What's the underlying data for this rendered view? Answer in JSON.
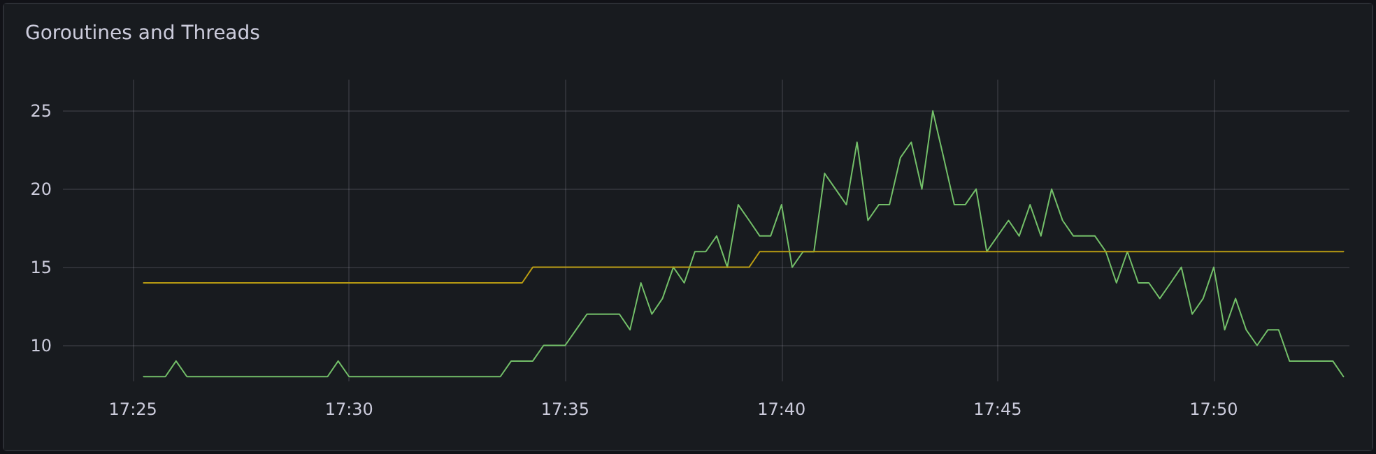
{
  "chart_data": {
    "type": "line",
    "title": "Goroutines and Threads",
    "x": [
      17.4208,
      17.425,
      17.4292,
      17.4333,
      17.4375,
      17.4417,
      17.4458,
      17.45,
      17.4542,
      17.4583,
      17.4625,
      17.4667,
      17.4708,
      17.475,
      17.4792,
      17.4833,
      17.4875,
      17.4917,
      17.4958,
      17.5,
      17.5042,
      17.5083,
      17.5125,
      17.5167,
      17.5208,
      17.525,
      17.5292,
      17.5333,
      17.5375,
      17.5417,
      17.5458,
      17.55,
      17.5542,
      17.5583,
      17.5625,
      17.5667,
      17.5708,
      17.575,
      17.5792,
      17.5833,
      17.5875,
      17.5917,
      17.5958,
      17.6,
      17.6042,
      17.6083,
      17.6125,
      17.6167,
      17.6208,
      17.625,
      17.6292,
      17.6333,
      17.6375,
      17.6417,
      17.6458,
      17.65,
      17.6542,
      17.6583,
      17.6625,
      17.6667,
      17.6708,
      17.675,
      17.6792,
      17.6833,
      17.6875,
      17.6917,
      17.6958,
      17.7,
      17.7042,
      17.7083,
      17.7125,
      17.7167,
      17.7208,
      17.725,
      17.7292,
      17.7333,
      17.7375,
      17.7417,
      17.7458,
      17.75,
      17.7542,
      17.7583,
      17.7625,
      17.7667,
      17.7708,
      17.775,
      17.7792,
      17.7833,
      17.7875,
      17.7917,
      17.7958,
      17.8,
      17.8042,
      17.8083,
      17.8125,
      17.8167,
      17.8208,
      17.825,
      17.8292,
      17.8333,
      17.8375,
      17.8417,
      17.8458,
      17.85,
      17.8542,
      17.8583,
      17.8625,
      17.8667,
      17.8708,
      17.875,
      17.8792,
      17.8833
    ],
    "series": [
      {
        "color": "#73bf69",
        "values": [
          8,
          8,
          8,
          9,
          8,
          8,
          8,
          8,
          8,
          8,
          8,
          8,
          8,
          8,
          8,
          8,
          8,
          8,
          9,
          8,
          8,
          8,
          8,
          8,
          8,
          8,
          8,
          8,
          8,
          8,
          8,
          8,
          8,
          8,
          9,
          9,
          9,
          10,
          10,
          10,
          11,
          12,
          12,
          12,
          12,
          11,
          14,
          12,
          13,
          15,
          14,
          16,
          16,
          17,
          15,
          19,
          18,
          17,
          17,
          19,
          15,
          16,
          16,
          21,
          20,
          19,
          23,
          18,
          19,
          19,
          22,
          23,
          20,
          25,
          22,
          19,
          19,
          20,
          16,
          17,
          18,
          17,
          19,
          17,
          20,
          18,
          17,
          17,
          17,
          16,
          14,
          16,
          14,
          14,
          13,
          14,
          15,
          12,
          13,
          15,
          11,
          13,
          11,
          10,
          11,
          11,
          9,
          9,
          9,
          9,
          9,
          8
        ]
      },
      {
        "color": "#b89b12",
        "values": [
          14,
          14,
          14,
          14,
          14,
          14,
          14,
          14,
          14,
          14,
          14,
          14,
          14,
          14,
          14,
          14,
          14,
          14,
          14,
          14,
          14,
          14,
          14,
          14,
          14,
          14,
          14,
          14,
          14,
          14,
          14,
          14,
          14,
          14,
          14,
          14,
          15,
          15,
          15,
          15,
          15,
          15,
          15,
          15,
          15,
          15,
          15,
          15,
          15,
          15,
          15,
          15,
          15,
          15,
          15,
          15,
          15,
          16,
          16,
          16,
          16,
          16,
          16,
          16,
          16,
          16,
          16,
          16,
          16,
          16,
          16,
          16,
          16,
          16,
          16,
          16,
          16,
          16,
          16,
          16,
          16,
          16,
          16,
          16,
          16,
          16,
          16,
          16,
          16,
          16,
          16,
          16,
          16,
          16,
          16,
          16,
          16,
          16,
          16,
          16,
          16,
          16,
          16,
          16,
          16,
          16,
          16,
          16,
          16,
          16,
          16,
          16
        ]
      }
    ],
    "xlim": [
      17.3897,
      17.8856
    ],
    "xticks": [
      {
        "value": 17.4167,
        "label": "17:25"
      },
      {
        "value": 17.5,
        "label": "17:30"
      },
      {
        "value": 17.5833,
        "label": "17:35"
      },
      {
        "value": 17.6667,
        "label": "17:40"
      },
      {
        "value": 17.75,
        "label": "17:45"
      },
      {
        "value": 17.8333,
        "label": "17:50"
      }
    ],
    "ylim": [
      7.7,
      27
    ],
    "yticks": [
      10,
      15,
      20,
      25
    ],
    "grid": true,
    "marker": "none",
    "line_style": "solid"
  }
}
